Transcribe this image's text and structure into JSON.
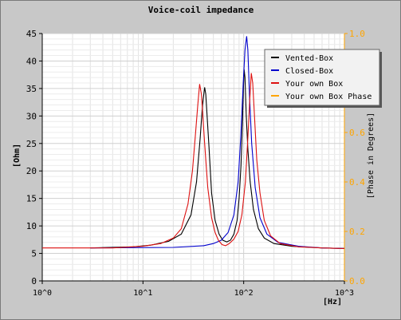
{
  "chart_data": {
    "type": "line",
    "title": "Voice-coil impedance",
    "xlabel": "[Hz]",
    "ylabel": "[Ohm]",
    "y2label": "[Phase in Degrees]",
    "xscale": "log",
    "xlim": [
      1,
      1000
    ],
    "ylim": [
      0,
      45
    ],
    "y2lim": [
      0,
      1
    ],
    "x_ticks": [
      "10^0",
      "10^1",
      "10^2",
      "10^3"
    ],
    "y_ticks": [
      "0",
      "5",
      "10",
      "15",
      "20",
      "25",
      "30",
      "35",
      "40",
      "45"
    ],
    "y2_ticks": [
      "0.0",
      "0.2",
      "0.4",
      "0.6",
      "0.8",
      "1.0"
    ],
    "grid": true,
    "legend_position": "top-right",
    "colors": {
      "vented": "#000000",
      "closed": "#0000cc",
      "own": "#dd1111",
      "phase": "#ffa500"
    },
    "series": [
      {
        "name": "Vented-Box",
        "color": "#000000",
        "points": [
          [
            3,
            6.0
          ],
          [
            8,
            6.2
          ],
          [
            12,
            6.5
          ],
          [
            18,
            7.2
          ],
          [
            24,
            8.5
          ],
          [
            30,
            12
          ],
          [
            34,
            18
          ],
          [
            37,
            26
          ],
          [
            39,
            32
          ],
          [
            41,
            35.2
          ],
          [
            42,
            34
          ],
          [
            45,
            25
          ],
          [
            48,
            16
          ],
          [
            52,
            11
          ],
          [
            57,
            8.5
          ],
          [
            62,
            7.4
          ],
          [
            68,
            7.1
          ],
          [
            74,
            7.4
          ],
          [
            80,
            8.5
          ],
          [
            86,
            11
          ],
          [
            90,
            15
          ],
          [
            94,
            21
          ],
          [
            97,
            28
          ],
          [
            99,
            34
          ],
          [
            101,
            38.5
          ],
          [
            103,
            37
          ],
          [
            106,
            30
          ],
          [
            110,
            24
          ],
          [
            116,
            18
          ],
          [
            125,
            13
          ],
          [
            140,
            9.5
          ],
          [
            160,
            7.8
          ],
          [
            200,
            6.8
          ],
          [
            300,
            6.3
          ],
          [
            600,
            6.0
          ],
          [
            1000,
            5.9
          ]
        ]
      },
      {
        "name": "Closed-Box",
        "color": "#0000cc",
        "points": [
          [
            3,
            6.0
          ],
          [
            20,
            6.1
          ],
          [
            40,
            6.4
          ],
          [
            50,
            6.8
          ],
          [
            60,
            7.4
          ],
          [
            70,
            8.8
          ],
          [
            80,
            12
          ],
          [
            88,
            18
          ],
          [
            94,
            27
          ],
          [
            99,
            36
          ],
          [
            103,
            42
          ],
          [
            107,
            44.5
          ],
          [
            110,
            42
          ],
          [
            114,
            34
          ],
          [
            120,
            25
          ],
          [
            130,
            17
          ],
          [
            145,
            11.5
          ],
          [
            170,
            8.5
          ],
          [
            220,
            7.0
          ],
          [
            350,
            6.3
          ],
          [
            600,
            6.0
          ],
          [
            1000,
            5.9
          ]
        ]
      },
      {
        "name": "Your own Box",
        "color": "#dd1111",
        "points": [
          [
            1,
            6.0
          ],
          [
            5,
            6.0
          ],
          [
            10,
            6.3
          ],
          [
            15,
            6.8
          ],
          [
            20,
            7.8
          ],
          [
            24,
            9.5
          ],
          [
            28,
            14
          ],
          [
            31,
            20
          ],
          [
            33,
            26
          ],
          [
            35,
            32
          ],
          [
            36.5,
            35.8
          ],
          [
            38,
            34
          ],
          [
            41,
            25
          ],
          [
            44,
            17
          ],
          [
            48,
            11.5
          ],
          [
            52,
            8.8
          ],
          [
            56,
            7.4
          ],
          [
            61,
            6.6
          ],
          [
            66,
            6.4
          ],
          [
            72,
            6.8
          ],
          [
            80,
            7.6
          ],
          [
            88,
            9.0
          ],
          [
            96,
            12
          ],
          [
            104,
            18
          ],
          [
            110,
            26
          ],
          [
            115,
            33
          ],
          [
            119,
            37.8
          ],
          [
            123,
            36
          ],
          [
            128,
            30
          ],
          [
            135,
            22
          ],
          [
            145,
            16
          ],
          [
            160,
            11
          ],
          [
            185,
            8.2
          ],
          [
            230,
            6.8
          ],
          [
            350,
            6.2
          ],
          [
            600,
            6.0
          ],
          [
            1000,
            5.9
          ]
        ]
      },
      {
        "name": "Your own Box Phase",
        "color": "#ffa500",
        "points": []
      }
    ]
  }
}
